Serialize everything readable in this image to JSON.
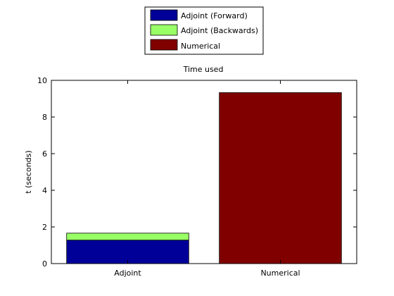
{
  "chart_data": {
    "type": "bar",
    "title": "Time used",
    "xlabel": "",
    "ylabel": "t (seconds)",
    "ylim": [
      0,
      10
    ],
    "yticks": [
      0,
      2,
      4,
      6,
      8,
      10
    ],
    "categories": [
      "Adjoint",
      "Numerical"
    ],
    "stacked": true,
    "series": [
      {
        "name": "Adjoint (Forward)",
        "color": "#000099",
        "values": [
          1.28,
          0
        ]
      },
      {
        "name": "Adjoint (Backwards)",
        "color": "#99ff66",
        "values": [
          0.38,
          0
        ]
      },
      {
        "name": "Numerical",
        "color": "#800000",
        "values": [
          0,
          9.33
        ]
      }
    ],
    "legend_position": "top-center",
    "grid": false
  }
}
